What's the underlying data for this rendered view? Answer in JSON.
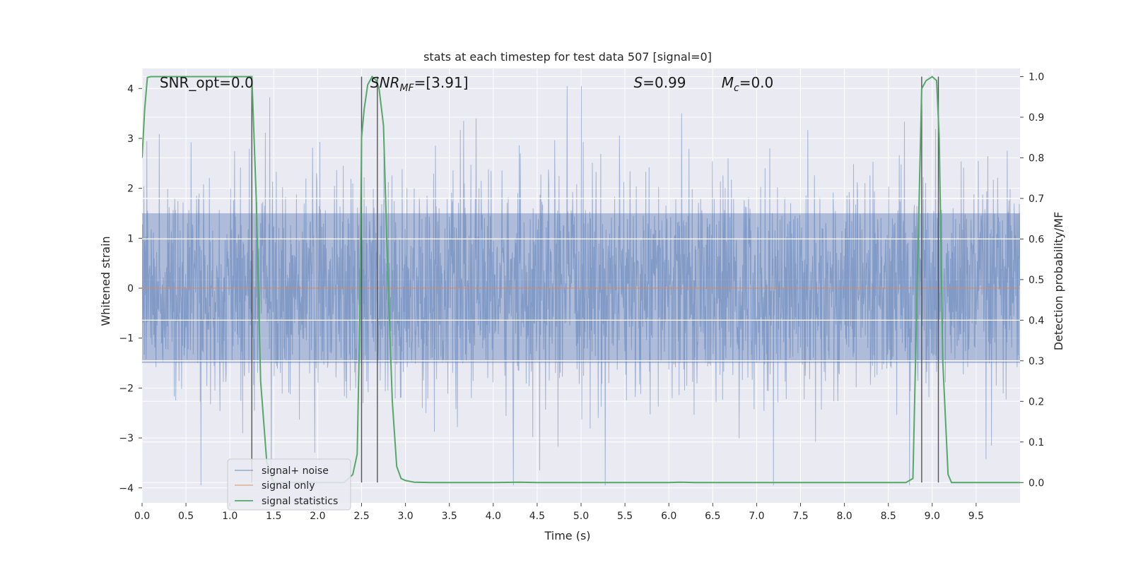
{
  "chart_data": {
    "type": "line",
    "title": "stats at each timestep for test data 507 [signal=0]",
    "xlabel": "Time (s)",
    "ylabel": "Whitened strain",
    "y2label": "Detection probability/MF",
    "xlim": [
      0,
      10
    ],
    "ylim": [
      -4.3,
      4.4
    ],
    "y2lim": [
      -0.05,
      1.02
    ],
    "x_ticks": [
      "0.0",
      "0.5",
      "1.0",
      "1.5",
      "2.0",
      "2.5",
      "3.0",
      "3.5",
      "4.0",
      "4.5",
      "5.0",
      "5.5",
      "6.0",
      "6.5",
      "7.0",
      "7.5",
      "8.0",
      "8.5",
      "9.0",
      "9.5"
    ],
    "x_tick_values": [
      0.0,
      0.5,
      1.0,
      1.5,
      2.0,
      2.5,
      3.0,
      3.5,
      4.0,
      4.5,
      5.0,
      5.5,
      6.0,
      6.5,
      7.0,
      7.5,
      8.0,
      8.5,
      9.0,
      9.5
    ],
    "y_ticks": [
      "4",
      "3",
      "2",
      "1",
      "0",
      "−1",
      "−2",
      "−3",
      "−4"
    ],
    "y_tick_values": [
      4,
      3,
      2,
      1,
      0,
      -1,
      -2,
      -3,
      -4
    ],
    "y2_ticks": [
      "1.0",
      "0.9",
      "0.8",
      "0.7",
      "0.6",
      "0.5",
      "0.4",
      "0.3",
      "0.2",
      "0.1",
      "0.0"
    ],
    "y2_tick_values": [
      1.0,
      0.9,
      0.8,
      0.7,
      0.6,
      0.5,
      0.4,
      0.3,
      0.2,
      0.1,
      0.0
    ],
    "grid": true,
    "legend_position": "lower-left",
    "series": [
      {
        "name": "signal+ noise",
        "color": "#4c72b0",
        "style": "dense noise, approx ±1.6 core, peaks to ±4"
      },
      {
        "name": "signal only",
        "color": "#dd8452",
        "values_constant": 0.0
      },
      {
        "name": "signal statistics",
        "color": "#55a868",
        "axis": "right",
        "x": [
          0.0,
          0.03,
          0.06,
          0.1,
          0.15,
          0.3,
          0.6,
          0.9,
          1.1,
          1.2,
          1.25,
          1.3,
          1.35,
          1.42,
          1.5,
          1.7,
          2.0,
          2.3,
          2.4,
          2.45,
          2.48,
          2.5,
          2.53,
          2.57,
          2.62,
          2.67,
          2.7,
          2.75,
          2.8,
          2.85,
          2.9,
          2.95,
          3.0,
          3.1,
          3.3,
          3.6,
          4.0,
          4.3,
          4.5,
          5.0,
          5.5,
          6.0,
          6.13,
          6.3,
          7.0,
          7.5,
          8.0,
          8.5,
          8.7,
          8.78,
          8.83,
          8.88,
          8.93,
          9.0,
          9.05,
          9.08,
          9.12,
          9.18,
          9.22,
          9.3,
          9.5,
          10.0
        ],
        "values": [
          0.8,
          0.92,
          0.998,
          1.0,
          1.0,
          1.0,
          1.0,
          1.0,
          1.0,
          1.0,
          1.0,
          0.7,
          0.25,
          0.05,
          0.0,
          0.0,
          0.0,
          0.0,
          0.02,
          0.07,
          0.4,
          0.85,
          0.92,
          0.98,
          1.0,
          0.99,
          0.97,
          0.88,
          0.5,
          0.2,
          0.04,
          0.01,
          0.005,
          0.001,
          0.0,
          0.0,
          0.0,
          0.001,
          0.0,
          0.0,
          0.0,
          0.0,
          0.001,
          0.0,
          0.0,
          0.0,
          0.0,
          0.0,
          0.0,
          0.01,
          0.5,
          0.97,
          0.99,
          1.0,
          0.99,
          0.85,
          0.3,
          0.02,
          0.0,
          0.0,
          0.0,
          0.0
        ]
      }
    ],
    "vertical_markers_x": [
      1.25,
      2.5,
      2.68,
      8.88,
      9.07
    ],
    "white_lines_y2": [
      0.7,
      0.6,
      0.4,
      0.3
    ],
    "white_lines_y2_label": "",
    "annotations": [
      {
        "text": "SNR_opt=0.0",
        "x": 0.2
      },
      {
        "text_main": "SNR",
        "text_sub": "MF",
        "text_rest": "=[3.91]",
        "italic": true,
        "x": 2.6
      },
      {
        "text_main": "S",
        "text_rest": "=0.99",
        "italic": true,
        "x": 5.6
      },
      {
        "text_main": "M",
        "text_sub": "c",
        "text_rest": "=0.0",
        "italic": true,
        "x": 6.6
      }
    ]
  },
  "colors": {
    "plot_background": "#eaeaf2",
    "grid": "#ffffff",
    "noise": "#4c72b0",
    "signal_only": "#dd8452",
    "statistics": "#55a868",
    "marker": "#555555"
  }
}
